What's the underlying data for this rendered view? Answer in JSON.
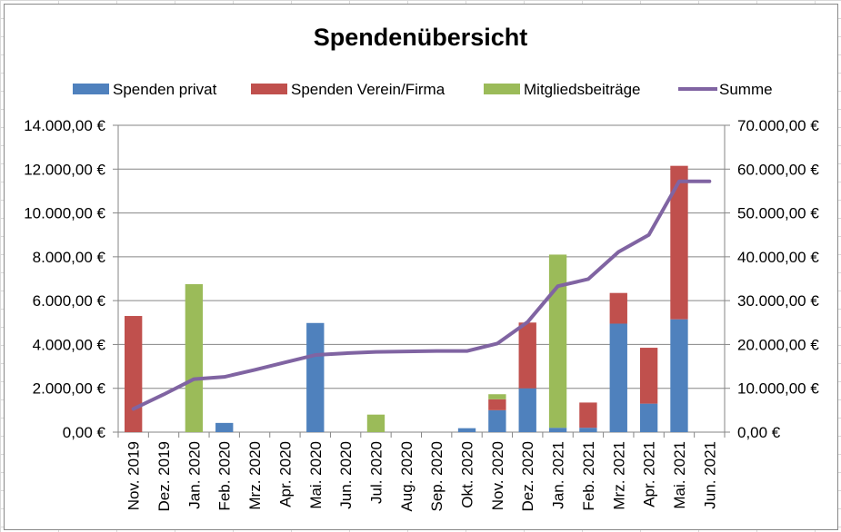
{
  "chart_data": {
    "type": "bar",
    "stacked": true,
    "title": "Spendenübersicht",
    "categories": [
      "Nov. 2019",
      "Dez. 2019",
      "Jan. 2020",
      "Feb. 2020",
      "Mrz. 2020",
      "Apr. 2020",
      "Mai. 2020",
      "Jun. 2020",
      "Jul. 2020",
      "Aug. 2020",
      "Sep. 2020",
      "Okt. 2020",
      "Nov. 2020",
      "Dez. 2020",
      "Jan. 2021",
      "Feb. 2021",
      "Mrz. 2021",
      "Apr. 2021",
      "Mai. 2021",
      "Jun. 2021"
    ],
    "series": [
      {
        "name": "Spenden privat",
        "type": "bar",
        "axis": "left",
        "color": "#4f81bd",
        "values": [
          0,
          0,
          0,
          420,
          0,
          0,
          4980,
          0,
          0,
          0,
          0,
          180,
          1000,
          2000,
          200,
          200,
          4950,
          1300,
          5150,
          0
        ]
      },
      {
        "name": "Spenden Verein/Firma",
        "type": "bar",
        "axis": "left",
        "color": "#c0504d",
        "values": [
          5300,
          0,
          0,
          0,
          0,
          0,
          0,
          0,
          0,
          0,
          0,
          0,
          500,
          3000,
          0,
          1150,
          1400,
          2550,
          7000,
          0
        ]
      },
      {
        "name": "Mitgliedsbeiträge",
        "type": "bar",
        "axis": "left",
        "color": "#9bbb59",
        "values": [
          0,
          0,
          6750,
          0,
          0,
          0,
          0,
          0,
          800,
          0,
          0,
          0,
          230,
          0,
          7900,
          0,
          0,
          0,
          0,
          0
        ]
      },
      {
        "name": "Summe",
        "type": "line",
        "axis": "right",
        "color": "#8064a2",
        "values": [
          5300,
          8600,
          12100,
          12600,
          14200,
          15900,
          17600,
          18000,
          18300,
          18400,
          18500,
          18500,
          20200,
          25100,
          33300,
          34900,
          41100,
          45000,
          57200,
          57200
        ]
      }
    ],
    "yaxis_left": {
      "min": 0,
      "max": 14000,
      "ticks": [
        "0,00 €",
        "2.000,00 €",
        "4.000,00 €",
        "6.000,00 €",
        "8.000,00 €",
        "10.000,00 €",
        "12.000,00 €",
        "14.000,00 €"
      ]
    },
    "yaxis_right": {
      "min": 0,
      "max": 70000,
      "ticks": [
        "0,00 €",
        "10.000,00 €",
        "20.000,00 €",
        "30.000,00 €",
        "40.000,00 €",
        "50.000,00 €",
        "60.000,00 €",
        "70.000,00 €"
      ]
    },
    "grid": true,
    "legend_position": "top"
  }
}
